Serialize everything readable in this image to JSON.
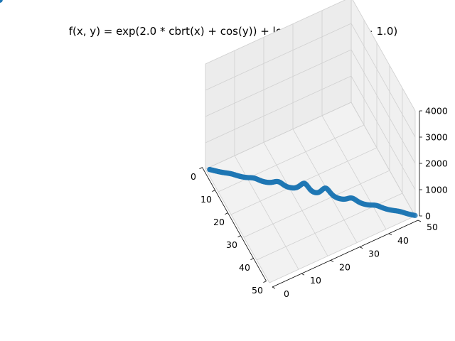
{
  "chart_data": {
    "type": "scatter",
    "projection": "3d",
    "title": "f(x, y) = exp(2.0 * cbrt(x) + cos(y)) + log(y) / square(x + 1.0)",
    "xlabel": "",
    "ylabel": "",
    "zlabel": "",
    "xlim": [
      0,
      50
    ],
    "ylim": [
      0,
      50
    ],
    "zlim": [
      0,
      4000
    ],
    "xticks": [
      "0",
      "10",
      "20",
      "30",
      "40",
      "50"
    ],
    "yticks": [
      "0",
      "10",
      "20",
      "30",
      "40",
      "50"
    ],
    "zticks": [
      "0",
      "1000",
      "2000",
      "3000",
      "4000"
    ],
    "grid": true,
    "legend": "none",
    "marker_color": "#1f77b4",
    "pane_color": "#f2f2f2",
    "grid_color": "#d0d0d0",
    "series": [
      {
        "x": [
          1.0,
          1.25,
          1.5,
          1.75,
          2.0,
          2.25,
          2.5,
          2.75,
          3.0,
          3.25,
          3.5,
          3.75,
          4.0,
          4.25,
          4.5,
          4.75,
          5.0,
          5.25,
          5.5,
          5.75,
          6.0,
          6.25,
          6.5,
          6.75,
          7.0,
          7.25,
          7.5,
          7.75,
          8.0,
          8.25,
          8.5,
          8.75,
          9.0,
          9.25,
          9.5,
          9.75,
          10.0,
          10.25,
          10.5,
          10.75,
          11.0,
          11.25,
          11.5,
          11.75,
          12.0,
          12.25,
          12.5,
          12.75,
          13.0,
          13.25,
          13.5,
          13.75,
          14.0,
          14.25,
          14.5,
          14.75,
          15.0,
          15.25,
          15.5,
          15.75,
          16.0,
          16.25,
          16.5,
          16.75,
          17.0,
          17.25,
          17.5,
          17.75,
          18.0,
          18.25,
          18.5,
          18.75,
          19.0,
          19.25,
          19.5,
          19.75,
          20.0,
          20.25,
          20.5,
          20.75,
          21.0,
          21.25,
          21.5,
          21.75,
          22.0,
          22.25,
          22.5,
          22.75,
          23.0,
          23.25,
          23.5,
          23.75,
          24.0,
          24.25,
          24.5,
          24.75,
          25.0,
          25.25,
          25.5,
          25.75,
          26.0,
          26.25,
          26.5,
          26.75,
          27.0,
          27.25,
          27.5,
          27.75,
          28.0,
          28.25,
          28.5,
          28.75,
          29.0,
          29.25,
          29.5,
          29.75,
          30.0,
          30.25,
          30.5,
          30.75,
          31.0,
          31.25,
          31.5,
          31.75,
          32.0,
          32.25,
          32.5,
          32.75,
          33.0,
          33.25,
          33.5,
          33.75,
          34.0,
          34.25,
          34.5,
          34.75,
          35.0,
          35.25,
          35.5,
          35.75,
          36.0,
          36.25,
          36.5,
          36.75,
          37.0,
          37.25,
          37.5,
          37.75,
          38.0,
          38.25,
          38.5,
          38.75,
          39.0,
          39.25,
          39.5,
          39.75,
          40.0,
          40.25,
          40.5,
          40.75,
          41.0,
          41.25,
          41.5,
          41.75,
          42.0,
          42.25,
          42.5,
          42.75,
          43.0,
          43.25,
          43.5,
          43.75,
          44.0,
          44.25,
          44.5,
          44.75,
          45.0,
          45.25,
          45.5,
          45.75,
          46.0,
          46.25,
          46.5,
          46.75,
          47.0,
          47.25,
          47.5,
          47.75,
          48.0,
          48.25,
          48.5,
          48.75,
          49.0,
          49.25,
          49.5,
          49.75,
          50.0
        ],
        "y": [
          1.0,
          1.25,
          1.5,
          1.75,
          2.0,
          2.25,
          2.5,
          2.75,
          3.0,
          3.25,
          3.5,
          3.75,
          4.0,
          4.25,
          4.5,
          4.75,
          5.0,
          5.25,
          5.5,
          5.75,
          6.0,
          6.25,
          6.5,
          6.75,
          7.0,
          7.25,
          7.5,
          7.75,
          8.0,
          8.25,
          8.5,
          8.75,
          9.0,
          9.25,
          9.5,
          9.75,
          10.0,
          10.25,
          10.5,
          10.75,
          11.0,
          11.25,
          11.5,
          11.75,
          12.0,
          12.25,
          12.5,
          12.75,
          13.0,
          13.25,
          13.5,
          13.75,
          14.0,
          14.25,
          14.5,
          14.75,
          15.0,
          15.25,
          15.5,
          15.75,
          16.0,
          16.25,
          16.5,
          16.75,
          17.0,
          17.25,
          17.5,
          17.75,
          18.0,
          18.25,
          18.5,
          18.75,
          19.0,
          19.25,
          19.5,
          19.75,
          20.0,
          20.25,
          20.5,
          20.75,
          21.0,
          21.25,
          21.5,
          21.75,
          22.0,
          22.25,
          22.5,
          22.75,
          23.0,
          23.25,
          23.5,
          23.75,
          24.0,
          24.25,
          24.5,
          24.75,
          25.0,
          25.25,
          25.5,
          25.75,
          26.0,
          26.25,
          26.5,
          26.75,
          27.0,
          27.25,
          27.5,
          27.75,
          28.0,
          28.25,
          28.5,
          28.75,
          29.0,
          29.25,
          29.5,
          29.75,
          30.0,
          30.25,
          30.5,
          30.75,
          31.0,
          31.25,
          31.5,
          31.75,
          32.0,
          32.25,
          32.5,
          32.75,
          33.0,
          33.25,
          33.5,
          33.75,
          34.0,
          34.25,
          34.5,
          34.75,
          35.0,
          35.25,
          35.5,
          35.75,
          36.0,
          36.25,
          36.5,
          36.75,
          37.0,
          37.25,
          37.5,
          37.75,
          38.0,
          38.25,
          38.5,
          38.75,
          39.0,
          39.25,
          39.5,
          39.75,
          40.0,
          40.25,
          40.5,
          40.75,
          41.0,
          41.25,
          41.5,
          41.75,
          42.0,
          42.25,
          42.5,
          42.75,
          43.0,
          43.25,
          43.5,
          43.75,
          44.0,
          44.25,
          44.5,
          44.75,
          45.0,
          45.25,
          45.5,
          45.75,
          46.0,
          46.25,
          46.5,
          46.75,
          47.0,
          47.25,
          47.5,
          47.75,
          48.0,
          48.25,
          48.5,
          48.75,
          49.0,
          49.25,
          49.5,
          49.75,
          50.0
        ],
        "z": [
          20.09,
          19.63,
          19.11,
          18.46,
          17.69,
          16.87,
          16.13,
          15.57,
          15.29,
          15.39,
          15.93,
          16.98,
          18.6,
          20.83,
          23.62,
          26.84,
          30.27,
          33.59,
          36.42,
          38.39,
          39.2,
          38.69,
          36.92,
          34.14,
          30.74,
          27.15,
          23.75,
          20.84,
          18.62,
          17.18,
          16.58,
          16.87,
          18.09,
          20.33,
          23.68,
          28.24,
          34.02,
          40.89,
          48.48,
          56.13,
          62.93,
          67.82,
          69.89,
          68.66,
          64.25,
          57.4,
          49.19,
          40.71,
          32.93,
          26.46,
          21.61,
          18.45,
          16.93,
          16.97,
          18.55,
          21.75,
          26.79,
          33.99,
          43.71,
          56.22,
          71.47,
          88.85,
          106.92,
          123.44,
          135.85,
          141.89,
          140.2,
          130.82,
          115.34,
          96.3,
          76.37,
          57.93,
          42.52,
          30.89,
          22.99,
          18.34,
          16.38,
          16.69,
          19.09,
          23.67,
          30.82,
          41.22,
          55.79,
          75.51,
          101.23,
          133.25,
          170.83,
          211.48,
          250.6,
          281.61,
          297.47,
          293.55,
          270.41,
          233.4,
          190.01,
          146.91,
          109.38,
          80.12,
          59.73,
          47.26,
          41.36,
          41.36,
          47.26,
          59.73,
          80.12,
          109.38,
          146.91,
          190.01,
          233.4,
          270.41,
          293.55,
          297.47,
          281.61,
          250.6,
          211.48,
          170.83,
          133.25,
          101.23,
          75.51,
          55.79,
          41.22,
          30.82,
          23.67,
          19.09,
          16.69,
          16.38,
          18.34,
          22.99,
          30.89,
          42.52,
          57.93,
          76.37,
          96.3,
          115.34,
          130.82,
          140.2,
          141.89,
          135.85,
          123.44,
          106.92,
          88.85,
          71.47,
          56.22,
          43.71,
          33.99,
          26.79,
          21.75,
          18.55,
          16.97,
          16.93,
          18.45,
          21.61,
          26.46,
          32.93,
          40.71,
          49.19,
          57.4,
          64.25,
          68.66,
          69.89,
          67.82,
          62.93,
          56.13,
          48.48,
          40.89,
          34.02,
          28.24,
          23.68,
          20.33,
          18.09,
          16.87,
          16.58,
          17.18,
          18.62,
          20.84,
          23.75,
          27.15,
          30.74,
          34.14,
          36.92,
          38.69,
          39.2,
          38.39,
          36.42,
          33.59,
          30.27,
          26.84,
          23.62,
          20.83,
          18.6,
          16.98,
          15.93,
          15.39,
          15.29,
          15.57,
          16.13,
          16.87,
          17.69,
          18.46,
          19.11,
          19.63,
          20.09
        ]
      }
    ]
  }
}
